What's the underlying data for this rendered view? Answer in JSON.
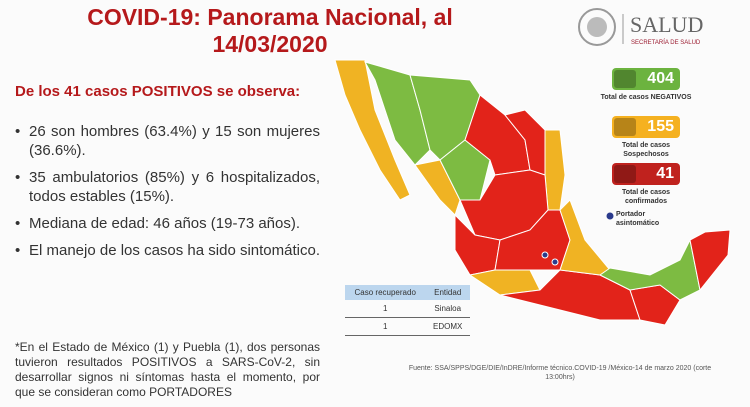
{
  "header": {
    "title": "COVID-19: Panorama Nacional, al",
    "date": "14/03/2020"
  },
  "logo": {
    "name": "SALUD",
    "subtitle": "SECRETARÍA DE SALUD"
  },
  "intro": "De los 41 casos POSITIVOS se observa:",
  "bullets": [
    "26 son hombres (63.4%) y 15 son mujeres (36.6%).",
    "35 ambulatorios (85%) y 6 hospitalizados, todos estables (15%).",
    "Mediana de edad: 46 años (19-73 años).",
    "El manejo de los casos ha sido sintomático."
  ],
  "footnote": "*En el Estado de México (1) y Puebla (1), dos personas tuvieron resultados POSITIVOS a SARS-CoV-2, sin desarrollar signos ni síntomas hasta el momento, por que se consideran como PORTADORES",
  "stats": [
    {
      "value": 404,
      "label": "Total de casos NEGATIVOS"
    },
    {
      "value": 155,
      "label": "Total de casos Sospechosos"
    },
    {
      "value": 41,
      "label": "Total de casos confirmados"
    }
  ],
  "legend": "Portador asintomático",
  "table": {
    "header": [
      "Caso recuperado",
      "Entidad"
    ],
    "rows": [
      [
        1,
        "Sinaloa"
      ],
      [
        1,
        "EDOMX"
      ]
    ]
  },
  "source": "Fuente: SSA/SPPS/DGE/DIE/InDRE/Informe técnico.COVID-19 /México-14 de marzo 2020 (corte 13:00hrs)"
}
